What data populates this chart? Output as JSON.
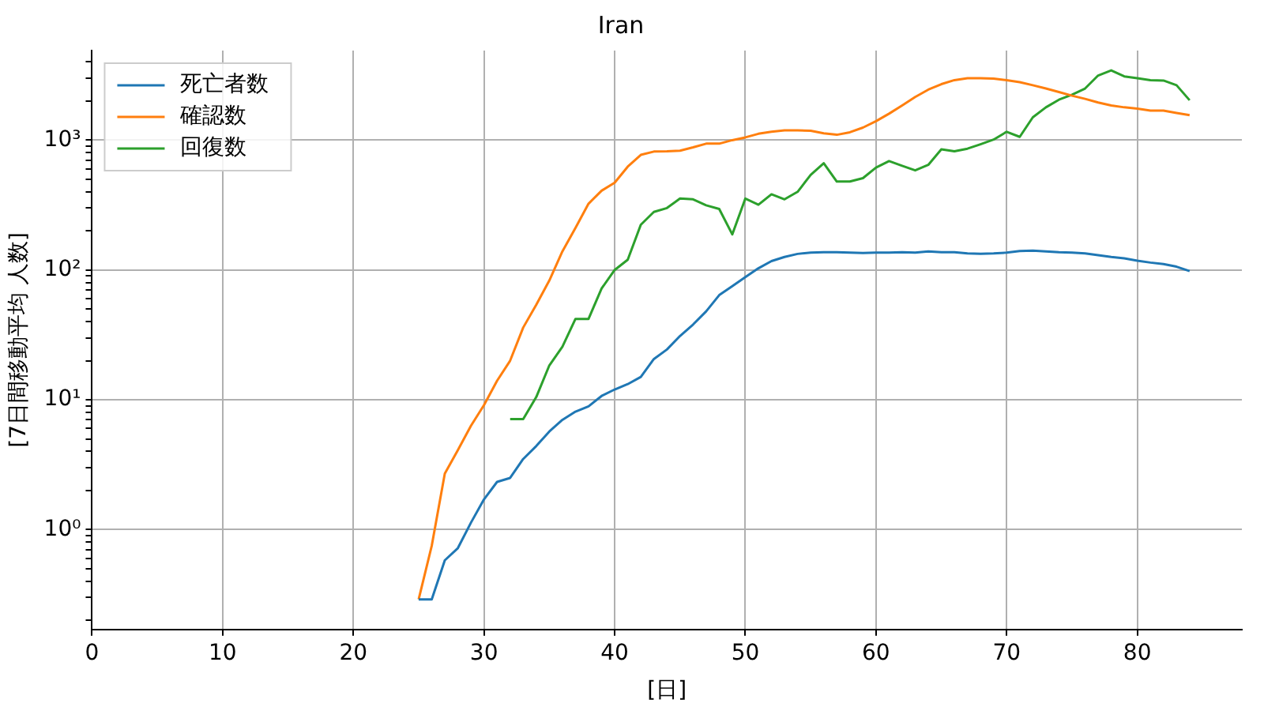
{
  "chart_data": {
    "type": "line",
    "title": "Iran",
    "xlabel": "[日]",
    "ylabel": "[7日間移動平均 人数]",
    "log": "y",
    "grid": true,
    "legend": "top left",
    "marker": "none",
    "line_style": "solid",
    "xlim": [
      0,
      88
    ],
    "xticks": [
      0,
      10,
      20,
      30,
      40,
      50,
      60,
      70,
      80
    ],
    "ylim": [
      0.17,
      4900
    ],
    "yticks": [
      {
        "value": 0.2,
        "label": null
      },
      {
        "value": 0.3,
        "label": null
      },
      {
        "value": 0.4,
        "label": null
      },
      {
        "value": 0.5,
        "label": null
      },
      {
        "value": 0.6,
        "label": null
      },
      {
        "value": 0.7,
        "label": null
      },
      {
        "value": 0.8,
        "label": null
      },
      {
        "value": 0.9,
        "label": null
      },
      {
        "value": 1,
        "label": "10⁰"
      },
      {
        "value": 2,
        "label": null
      },
      {
        "value": 3,
        "label": null
      },
      {
        "value": 4,
        "label": null
      },
      {
        "value": 5,
        "label": null
      },
      {
        "value": 6,
        "label": null
      },
      {
        "value": 7,
        "label": null
      },
      {
        "value": 8,
        "label": null
      },
      {
        "value": 9,
        "label": null
      },
      {
        "value": 10,
        "label": "10¹"
      },
      {
        "value": 20,
        "label": null
      },
      {
        "value": 30,
        "label": null
      },
      {
        "value": 40,
        "label": null
      },
      {
        "value": 50,
        "label": null
      },
      {
        "value": 60,
        "label": null
      },
      {
        "value": 70,
        "label": null
      },
      {
        "value": 80,
        "label": null
      },
      {
        "value": 90,
        "label": null
      },
      {
        "value": 100,
        "label": "10²"
      },
      {
        "value": 200,
        "label": null
      },
      {
        "value": 300,
        "label": null
      },
      {
        "value": 400,
        "label": null
      },
      {
        "value": 500,
        "label": null
      },
      {
        "value": 600,
        "label": null
      },
      {
        "value": 700,
        "label": null
      },
      {
        "value": 800,
        "label": null
      },
      {
        "value": 900,
        "label": null
      },
      {
        "value": 1000,
        "label": "10³"
      },
      {
        "value": 2000,
        "label": null
      },
      {
        "value": 3000,
        "label": null
      },
      {
        "value": 4000,
        "label": null
      }
    ],
    "series": [
      {
        "name": "死亡者数",
        "color": "#1f77b4",
        "x": [
          25,
          26,
          27,
          28,
          29,
          30,
          31,
          32,
          33,
          34,
          35,
          36,
          37,
          38,
          39,
          40,
          41,
          42,
          43,
          44,
          45,
          46,
          47,
          48,
          49,
          50,
          51,
          52,
          53,
          54,
          55,
          56,
          57,
          58,
          59,
          60,
          61,
          62,
          63,
          64,
          65,
          66,
          67,
          68,
          69,
          70,
          71,
          72,
          73,
          74,
          75,
          76,
          77,
          78,
          79,
          80,
          81,
          82,
          83,
          84
        ],
        "values": [
          0.29,
          0.29,
          0.58,
          0.72,
          1.13,
          1.71,
          2.33,
          2.5,
          3.5,
          4.4,
          5.7,
          7.0,
          8.1,
          8.9,
          10.7,
          12.0,
          13.2,
          15.0,
          20.6,
          24.4,
          31,
          38,
          48,
          64,
          75,
          88,
          103,
          117,
          126,
          133,
          136,
          137,
          137,
          136,
          135,
          136,
          136,
          137,
          136,
          139,
          137,
          137,
          134,
          133,
          134,
          136,
          140,
          141,
          139,
          137,
          136,
          134,
          130,
          126,
          123,
          118,
          114,
          111,
          106,
          98
        ]
      },
      {
        "name": "確認数",
        "color": "#ff7f0e",
        "x": [
          25,
          26,
          27,
          28,
          29,
          30,
          31,
          32,
          33,
          34,
          35,
          36,
          37,
          38,
          39,
          40,
          41,
          42,
          43,
          44,
          45,
          46,
          47,
          48,
          49,
          50,
          51,
          52,
          53,
          54,
          55,
          56,
          57,
          58,
          59,
          60,
          61,
          62,
          63,
          64,
          65,
          66,
          67,
          68,
          69,
          70,
          71,
          72,
          73,
          74,
          75,
          76,
          77,
          78,
          79,
          80,
          81,
          82,
          83,
          84
        ],
        "values": [
          0.29,
          0.75,
          2.7,
          4.1,
          6.3,
          9.1,
          14,
          20,
          36,
          54,
          83,
          139,
          211,
          324,
          408,
          470,
          625,
          770,
          817,
          820,
          830,
          880,
          940,
          940,
          1000,
          1050,
          1120,
          1160,
          1190,
          1190,
          1180,
          1130,
          1100,
          1150,
          1250,
          1400,
          1600,
          1850,
          2150,
          2450,
          2700,
          2900,
          3000,
          3000,
          2980,
          2900,
          2800,
          2650,
          2500,
          2350,
          2200,
          2080,
          1950,
          1850,
          1790,
          1750,
          1690,
          1690,
          1620,
          1560
        ]
      },
      {
        "name": "回復数",
        "color": "#2ca02c",
        "x": [
          32,
          33,
          34,
          35,
          36,
          37,
          38,
          39,
          40,
          41,
          42,
          43,
          44,
          45,
          46,
          47,
          48,
          49,
          50,
          51,
          52,
          53,
          54,
          55,
          56,
          57,
          58,
          59,
          60,
          61,
          62,
          63,
          64,
          65,
          66,
          67,
          68,
          69,
          70,
          71,
          72,
          73,
          74,
          75,
          76,
          77,
          78,
          79,
          80,
          81,
          82,
          83,
          84
        ],
        "values": [
          7.1,
          7.1,
          10.5,
          18.4,
          25.6,
          42,
          42,
          72,
          100,
          120,
          223,
          280,
          300,
          355,
          350,
          315,
          295,
          188,
          355,
          318,
          383,
          350,
          400,
          540,
          665,
          480,
          480,
          510,
          615,
          690,
          635,
          585,
          645,
          850,
          820,
          860,
          930,
          1010,
          1160,
          1060,
          1500,
          1790,
          2050,
          2240,
          2500,
          3150,
          3450,
          3100,
          3000,
          2900,
          2880,
          2650,
          2030
        ]
      }
    ]
  }
}
